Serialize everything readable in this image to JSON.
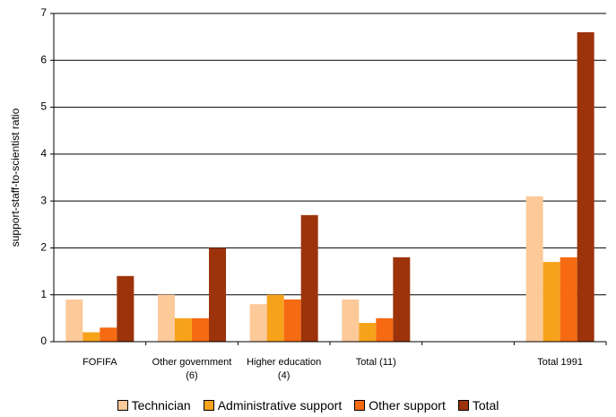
{
  "chart_data": {
    "type": "bar",
    "y_label": "support-staff-to-scientist ratio",
    "categories": [
      "FOFIFA",
      "Other government (6)",
      "Higher education (4)",
      "Total (11)",
      null,
      "Total  1991"
    ],
    "series": [
      {
        "name": "Technician",
        "color": "#fcc999",
        "values": [
          0.9,
          1.0,
          0.8,
          0.9,
          null,
          3.1
        ]
      },
      {
        "name": "Administrative support",
        "color": "#f7a21b",
        "values": [
          0.2,
          0.5,
          1.0,
          0.4,
          null,
          1.7
        ]
      },
      {
        "name": "Other support",
        "color": "#f66a12",
        "values": [
          0.3,
          0.5,
          0.9,
          0.5,
          null,
          1.8
        ]
      },
      {
        "name": "Total",
        "color": "#9c330a",
        "values": [
          1.4,
          2.0,
          2.7,
          1.8,
          null,
          6.6
        ]
      }
    ],
    "ylim": [
      0,
      7
    ],
    "yticks": [
      0,
      1,
      2,
      3,
      4,
      5,
      6,
      7
    ],
    "grid": true
  }
}
